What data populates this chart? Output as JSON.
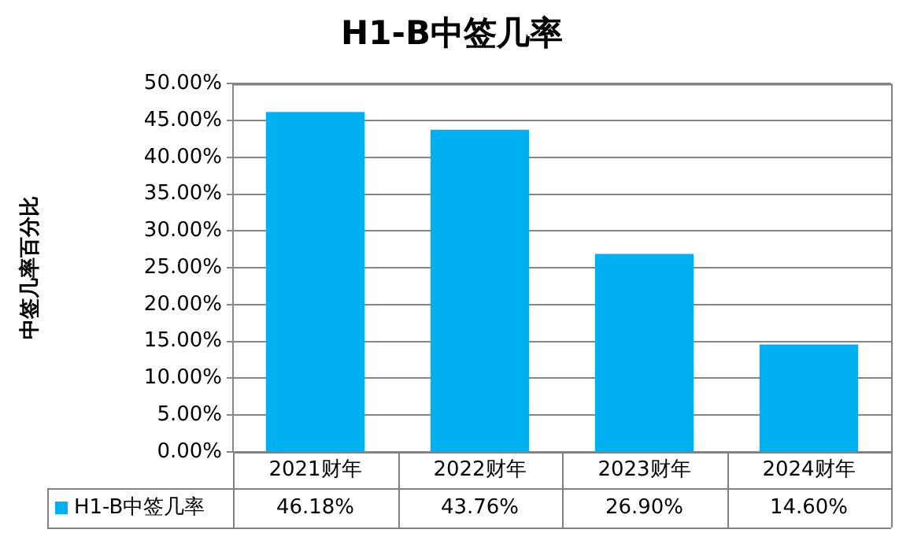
{
  "chart_data": {
    "type": "bar",
    "title": "H1-B中签几率",
    "ylabel": "中签几率百分比",
    "categories": [
      "2021财年",
      "2022财年",
      "2023财年",
      "2024财年"
    ],
    "series": [
      {
        "name": "H1-B中签几率",
        "color": "#00b0f0",
        "values": [
          46.18,
          43.76,
          26.9,
          14.6
        ],
        "value_labels": [
          "46.18%",
          "43.76%",
          "26.90%",
          "14.60%"
        ]
      }
    ],
    "ylim": [
      0,
      50
    ],
    "yticks": [
      {
        "value": 0,
        "label": "0.00%"
      },
      {
        "value": 5,
        "label": "5.00%"
      },
      {
        "value": 10,
        "label": "10.00%"
      },
      {
        "value": 15,
        "label": "15.00%"
      },
      {
        "value": 20,
        "label": "20.00%"
      },
      {
        "value": 25,
        "label": "25.00%"
      },
      {
        "value": 30,
        "label": "30.00%"
      },
      {
        "value": 35,
        "label": "35.00%"
      },
      {
        "value": 40,
        "label": "40.00%"
      },
      {
        "value": 45,
        "label": "45.00%"
      },
      {
        "value": 50,
        "label": "50.00%"
      }
    ],
    "grid": "y",
    "legend": "bottom"
  }
}
